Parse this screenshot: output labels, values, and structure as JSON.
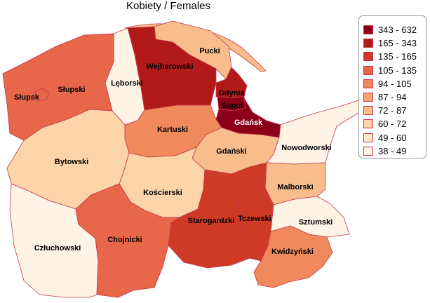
{
  "title": "Kobiety / Females",
  "legend": [
    {
      "label": "343 - 632",
      "color": "#8b0018"
    },
    {
      "label": "165 - 343",
      "color": "#b21a1a"
    },
    {
      "label": "135 - 165",
      "color": "#cf3a27"
    },
    {
      "label": "105 - 135",
      "color": "#e8664a"
    },
    {
      "label": "94 - 105",
      "color": "#f08a5d"
    },
    {
      "label": "87 - 94",
      "color": "#f5a373"
    },
    {
      "label": "72 - 87",
      "color": "#f8bd8c"
    },
    {
      "label": "60 - 72",
      "color": "#fbd4a8"
    },
    {
      "label": "49 - 60",
      "color": "#fde5c7"
    },
    {
      "label": "38 - 49",
      "color": "#fff3e6"
    }
  ],
  "regions": [
    {
      "name": "Pucki",
      "class": "72 - 87"
    },
    {
      "name": "Wejherowski",
      "class": "165 - 343"
    },
    {
      "name": "Lęborski",
      "class": "38 - 49"
    },
    {
      "name": "Słupski",
      "class": "105 - 135"
    },
    {
      "name": "Słupsk",
      "class": "105 - 135"
    },
    {
      "name": "Gdynia",
      "class": "165 - 343"
    },
    {
      "name": "Sopot",
      "class": "343 - 632"
    },
    {
      "name": "Gdańsk",
      "class": "343 - 632"
    },
    {
      "name": "Kartuski",
      "class": "94 - 105"
    },
    {
      "name": "Bytowski",
      "class": "60 - 72"
    },
    {
      "name": "Gdański",
      "class": "72 - 87"
    },
    {
      "name": "Nowodworski",
      "class": "38 - 49"
    },
    {
      "name": "Kościerski",
      "class": "60 - 72"
    },
    {
      "name": "Malborski",
      "class": "72 - 87"
    },
    {
      "name": "Starogardzki",
      "class": "135 - 165"
    },
    {
      "name": "Tczewski",
      "class": "135 - 165"
    },
    {
      "name": "Sztumski",
      "class": "38 - 49"
    },
    {
      "name": "Człuchowski",
      "class": "38 - 49"
    },
    {
      "name": "Chojnicki",
      "class": "105 - 135"
    },
    {
      "name": "Kwidzyński",
      "class": "94 - 105"
    }
  ]
}
